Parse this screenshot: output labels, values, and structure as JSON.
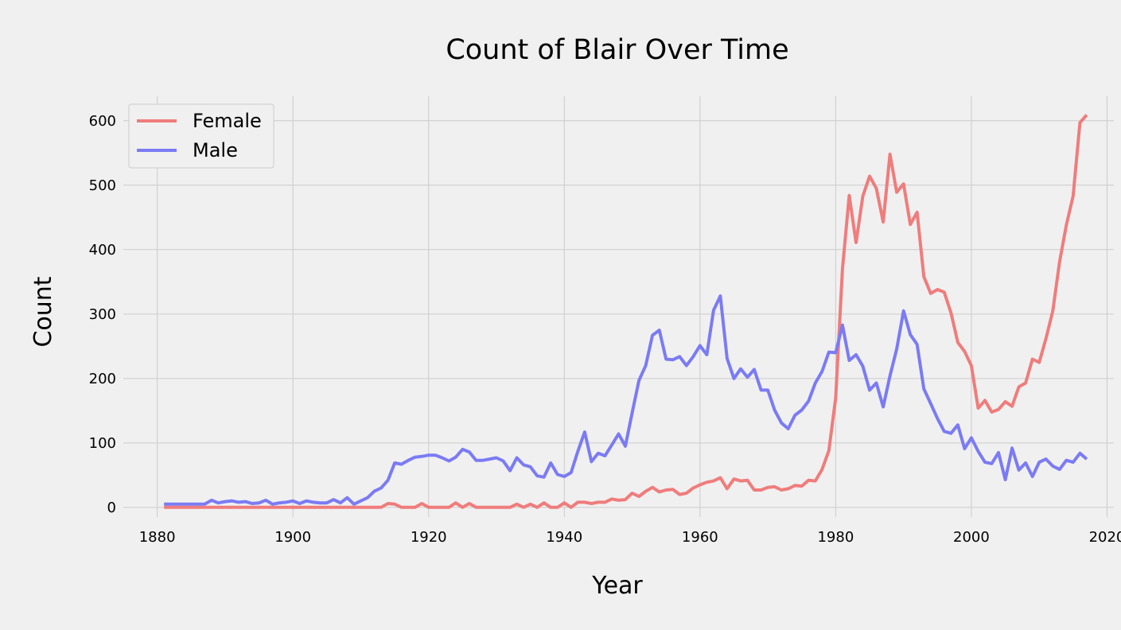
{
  "chart_data": {
    "type": "line",
    "title": "Count of Blair Over Time",
    "xlabel": "Year",
    "ylabel": "Count",
    "xlim": [
      1875,
      2021
    ],
    "ylim": [
      -15,
      638
    ],
    "xticks": [
      1880,
      1900,
      1920,
      1940,
      1960,
      1980,
      2000,
      2020
    ],
    "yticks": [
      0,
      100,
      200,
      300,
      400,
      500,
      600
    ],
    "grid": true,
    "legend_position": "top-left",
    "x": [
      1881,
      1882,
      1883,
      1884,
      1885,
      1886,
      1887,
      1888,
      1889,
      1890,
      1891,
      1892,
      1893,
      1894,
      1895,
      1896,
      1897,
      1898,
      1899,
      1900,
      1901,
      1902,
      1903,
      1904,
      1905,
      1906,
      1907,
      1908,
      1909,
      1910,
      1911,
      1912,
      1913,
      1914,
      1915,
      1916,
      1917,
      1918,
      1919,
      1920,
      1921,
      1922,
      1923,
      1924,
      1925,
      1926,
      1927,
      1928,
      1929,
      1930,
      1931,
      1932,
      1933,
      1934,
      1935,
      1936,
      1937,
      1938,
      1939,
      1940,
      1941,
      1942,
      1943,
      1944,
      1945,
      1946,
      1947,
      1948,
      1949,
      1950,
      1951,
      1952,
      1953,
      1954,
      1955,
      1956,
      1957,
      1958,
      1959,
      1960,
      1961,
      1962,
      1963,
      1964,
      1965,
      1966,
      1967,
      1968,
      1969,
      1970,
      1971,
      1972,
      1973,
      1974,
      1975,
      1976,
      1977,
      1978,
      1979,
      1980,
      1981,
      1982,
      1983,
      1984,
      1985,
      1986,
      1987,
      1988,
      1989,
      1990,
      1991,
      1992,
      1993,
      1994,
      1995,
      1996,
      1997,
      1998,
      1999,
      2000,
      2001,
      2002,
      2003,
      2004,
      2005,
      2006,
      2007,
      2008,
      2009,
      2010,
      2011,
      2012,
      2013,
      2014,
      2015,
      2016,
      2017
    ],
    "series": [
      {
        "name": "Female",
        "color": "#f07c7c",
        "values": [
          0,
          0,
          0,
          0,
          0,
          0,
          0,
          0,
          0,
          0,
          0,
          0,
          0,
          0,
          0,
          0,
          0,
          0,
          0,
          0,
          0,
          0,
          0,
          0,
          0,
          0,
          0,
          0,
          0,
          0,
          0,
          0,
          0,
          6,
          5,
          0,
          0,
          0,
          6,
          0,
          0,
          0,
          0,
          7,
          0,
          6,
          0,
          0,
          0,
          0,
          0,
          0,
          5,
          0,
          5,
          0,
          7,
          0,
          0,
          7,
          0,
          8,
          8,
          6,
          8,
          8,
          13,
          11,
          12,
          22,
          17,
          25,
          31,
          24,
          27,
          28,
          20,
          22,
          30,
          35,
          39,
          41,
          46,
          29,
          44,
          41,
          42,
          27,
          27,
          31,
          32,
          27,
          29,
          34,
          33,
          42,
          41,
          59,
          88,
          170,
          370,
          484,
          411,
          483,
          514,
          495,
          443,
          548,
          489,
          502,
          439,
          458,
          358,
          332,
          338,
          334,
          302,
          256,
          242,
          220,
          154,
          166,
          148,
          152,
          164,
          157,
          187,
          193,
          230,
          225,
          262,
          305,
          381,
          438,
          483,
          597,
          609
        ]
      },
      {
        "name": "Male",
        "color": "#7b7bf5",
        "values": [
          5,
          5,
          5,
          5,
          5,
          5,
          5,
          11,
          7,
          9,
          10,
          8,
          9,
          6,
          7,
          11,
          5,
          7,
          8,
          10,
          6,
          10,
          8,
          7,
          7,
          12,
          7,
          15,
          5,
          10,
          15,
          25,
          30,
          42,
          69,
          67,
          73,
          78,
          79,
          81,
          81,
          77,
          72,
          78,
          90,
          86,
          73,
          73,
          75,
          77,
          72,
          57,
          77,
          66,
          63,
          49,
          47,
          69,
          51,
          48,
          54,
          87,
          117,
          71,
          84,
          80,
          97,
          114,
          95,
          147,
          197,
          220,
          267,
          275,
          230,
          229,
          234,
          220,
          234,
          251,
          237,
          306,
          328,
          231,
          200,
          215,
          202,
          214,
          182,
          182,
          151,
          131,
          122,
          143,
          151,
          165,
          193,
          211,
          241,
          240,
          283,
          228,
          237,
          219,
          182,
          193,
          156,
          204,
          246,
          305,
          268,
          253,
          184,
          161,
          138,
          118,
          115,
          128,
          91,
          108,
          87,
          70,
          68,
          85,
          43,
          92,
          58,
          69,
          48,
          70,
          75,
          64,
          59,
          73,
          70,
          84,
          75
        ]
      }
    ]
  }
}
